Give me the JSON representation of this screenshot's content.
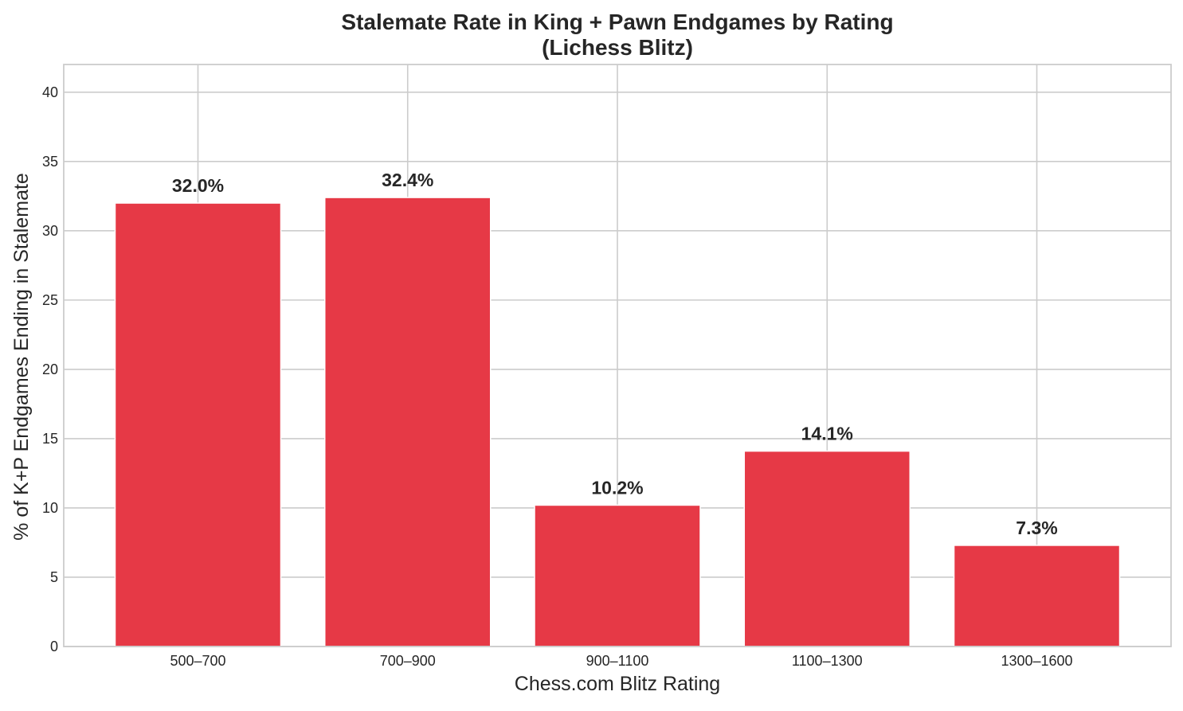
{
  "chart_data": {
    "type": "bar",
    "title": "Stalemate Rate in King + Pawn Endgames by Rating",
    "subtitle": "(Lichess Blitz)",
    "xlabel": "Chess.com Blitz Rating",
    "ylabel": "% of K+P Endgames Ending in Stalemate",
    "categories": [
      "500–700",
      "700–900",
      "900–1100",
      "1100–1300",
      "1300–1600"
    ],
    "values": [
      32.0,
      32.4,
      10.2,
      14.1,
      7.3
    ],
    "data_labels": [
      "32.0%",
      "32.4%",
      "10.2%",
      "14.1%",
      "7.3%"
    ],
    "ylim": [
      0,
      42
    ],
    "yticks": [
      0,
      5,
      10,
      15,
      20,
      25,
      30,
      35,
      40
    ],
    "grid": true,
    "bar_color": "#e63946",
    "grid_color": "#cccccc",
    "axis_color": "#cccccc",
    "text_color": "#262626"
  }
}
